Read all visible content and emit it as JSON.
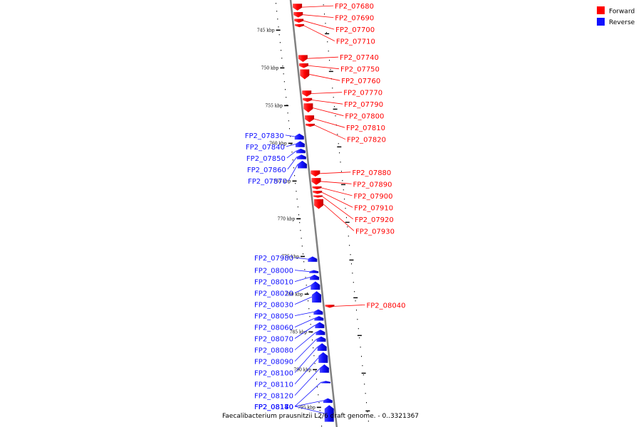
{
  "colors": {
    "forward": "#ff0000",
    "reverse": "#1010ff",
    "backbone": "#808080"
  },
  "legend": [
    {
      "label": "Forward",
      "color": "#ff0000"
    },
    {
      "label": "Reverse",
      "color": "#1010ff"
    }
  ],
  "caption": "Faecalibacterium prausnitzii L2/6 draft genome. - 0..3321367",
  "ticks": [
    {
      "kbp": 745,
      "label": "745 kbp"
    },
    {
      "kbp": 750,
      "label": "750 kbp"
    },
    {
      "kbp": 755,
      "label": "755 kbp"
    },
    {
      "kbp": 760,
      "label": "760 kbp"
    },
    {
      "kbp": 765,
      "label": "765 kbp"
    },
    {
      "kbp": 770,
      "label": "770 kbp"
    },
    {
      "kbp": 775,
      "label": "775 kbp"
    },
    {
      "kbp": 780,
      "label": "780 kbp"
    },
    {
      "kbp": 785,
      "label": "785 kbp"
    },
    {
      "kbp": 790,
      "label": "790 kbp"
    },
    {
      "kbp": 795,
      "label": "795 kbp"
    }
  ],
  "genes": [
    {
      "id": "FP2_07680",
      "strand": "forward",
      "start": 741.5,
      "end": 742.5
    },
    {
      "id": "FP2_07690",
      "strand": "forward",
      "start": 742.6,
      "end": 743.4
    },
    {
      "id": "FP2_07700",
      "strand": "forward",
      "start": 743.5,
      "end": 744.1
    },
    {
      "id": "FP2_07710",
      "strand": "forward",
      "start": 744.2,
      "end": 744.7
    },
    {
      "id": "FP2_07740",
      "strand": "forward",
      "start": 748.3,
      "end": 749.3
    },
    {
      "id": "FP2_07750",
      "strand": "forward",
      "start": 749.4,
      "end": 750.1
    },
    {
      "id": "FP2_07760",
      "strand": "forward",
      "start": 750.2,
      "end": 751.6
    },
    {
      "id": "FP2_07770",
      "strand": "forward",
      "start": 753.0,
      "end": 753.9
    },
    {
      "id": "FP2_07790",
      "strand": "forward",
      "start": 754.0,
      "end": 754.6
    },
    {
      "id": "FP2_07800",
      "strand": "forward",
      "start": 754.7,
      "end": 756.0
    },
    {
      "id": "FP2_07810",
      "strand": "forward",
      "start": 756.3,
      "end": 757.3
    },
    {
      "id": "FP2_07820",
      "strand": "forward",
      "start": 757.4,
      "end": 757.9
    },
    {
      "id": "FP2_07830",
      "strand": "reverse",
      "start": 758.7,
      "end": 759.6
    },
    {
      "id": "FP2_07840",
      "strand": "reverse",
      "start": 759.7,
      "end": 760.6
    },
    {
      "id": "FP2_07850",
      "strand": "reverse",
      "start": 760.7,
      "end": 761.4
    },
    {
      "id": "FP2_07860",
      "strand": "reverse",
      "start": 761.5,
      "end": 762.2
    },
    {
      "id": "FP2_07870",
      "strand": "reverse",
      "start": 762.3,
      "end": 763.4
    },
    {
      "id": "FP2_07880",
      "strand": "forward",
      "start": 763.6,
      "end": 764.5
    },
    {
      "id": "FP2_07890",
      "strand": "forward",
      "start": 764.6,
      "end": 765.6
    },
    {
      "id": "FP2_07900",
      "strand": "forward",
      "start": 765.7,
      "end": 766.2
    },
    {
      "id": "FP2_07910",
      "strand": "forward",
      "start": 766.3,
      "end": 766.8
    },
    {
      "id": "FP2_07920",
      "strand": "forward",
      "start": 766.9,
      "end": 767.3
    },
    {
      "id": "FP2_07930",
      "strand": "forward",
      "start": 767.4,
      "end": 768.8
    },
    {
      "id": "FP2_07980",
      "strand": "reverse",
      "start": 775.0,
      "end": 775.8
    },
    {
      "id": "FP2_08000",
      "strand": "reverse",
      "start": 776.8,
      "end": 777.3
    },
    {
      "id": "FP2_08010",
      "strand": "reverse",
      "start": 777.4,
      "end": 778.2
    },
    {
      "id": "FP2_08020",
      "strand": "reverse",
      "start": 778.3,
      "end": 779.5
    },
    {
      "id": "FP2_08030",
      "strand": "reverse",
      "start": 779.6,
      "end": 781.2
    },
    {
      "id": "FP2_08040",
      "strand": "forward",
      "start": 781.4,
      "end": 781.9
    },
    {
      "id": "FP2_08050",
      "strand": "reverse",
      "start": 782.0,
      "end": 782.8
    },
    {
      "id": "FP2_08060",
      "strand": "reverse",
      "start": 782.9,
      "end": 783.6
    },
    {
      "id": "FP2_08070",
      "strand": "reverse",
      "start": 783.7,
      "end": 784.6
    },
    {
      "id": "FP2_08080",
      "strand": "reverse",
      "start": 784.7,
      "end": 785.5
    },
    {
      "id": "FP2_08090",
      "strand": "reverse",
      "start": 785.6,
      "end": 786.4
    },
    {
      "id": "FP2_08100",
      "strand": "reverse",
      "start": 786.5,
      "end": 787.6
    },
    {
      "id": "FP2_08110",
      "strand": "reverse",
      "start": 787.7,
      "end": 789.2
    },
    {
      "id": "FP2_08120",
      "strand": "reverse",
      "start": 789.3,
      "end": 790.5
    },
    {
      "id": "FP2_08140",
      "strand": "reverse",
      "start": 791.5,
      "end": 791.9
    },
    {
      "id": "FP2_08170",
      "strand": "reverse",
      "start": 793.8,
      "end": 794.5
    },
    {
      "id": "FP2_08180",
      "strand": "reverse",
      "start": 794.7,
      "end": 797.0
    }
  ]
}
